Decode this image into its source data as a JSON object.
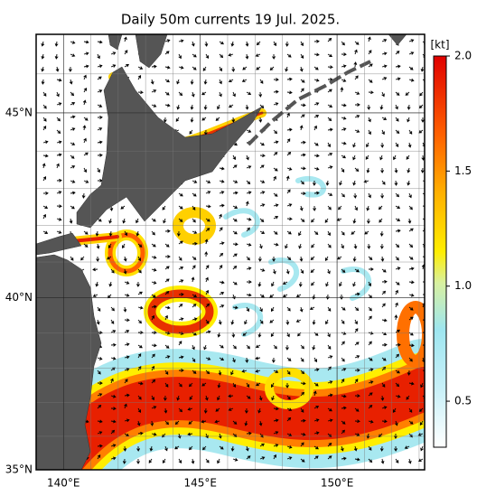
{
  "title": "Daily 50m currents 19 Jul. 2025.",
  "map": {
    "xlim": [
      139,
      153.2
    ],
    "ylim": [
      35,
      47
    ],
    "xticks": [
      {
        "value": 140,
        "label": "140°E"
      },
      {
        "value": 145,
        "label": "145°E"
      },
      {
        "value": 150,
        "label": "150°E"
      }
    ],
    "yticks": [
      {
        "value": 35,
        "label": "35°N"
      },
      {
        "value": 40,
        "label": "40°N"
      },
      {
        "value": 45,
        "label": "45°N"
      }
    ]
  },
  "colorbar": {
    "label": "[kt]",
    "lim": [
      0.3,
      2
    ],
    "ticks": [
      {
        "value": 2,
        "label": "2.0"
      },
      1.5,
      {
        "value": 1,
        "label": "1.0"
      },
      0.5
    ]
  }
}
